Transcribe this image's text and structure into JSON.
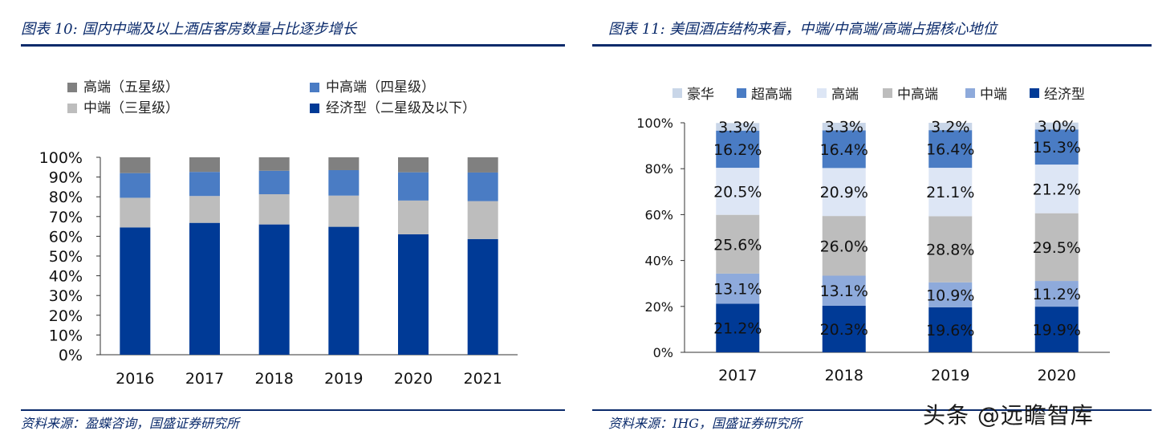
{
  "left": {
    "title": "图表 10:  国内中端及以上酒店客房数量占比逐步增长",
    "source": "资料来源：盈蝶咨询，国盛证券研究所"
  },
  "right": {
    "title": "图表 11:  美国酒店结构来看，中端/中高端/高端占据核心地位",
    "source": "资料来源：IHG，国盛证券研究所"
  },
  "watermark": "头条 @远瞻智库",
  "colors": {
    "rule": "#0a2a6b"
  },
  "chart_data": [
    {
      "type": "bar",
      "stacked": true,
      "title": "国内中端及以上酒店客房数量占比逐步增长",
      "categories": [
        "2016",
        "2017",
        "2018",
        "2019",
        "2020",
        "2021"
      ],
      "series": [
        {
          "name": "经济型（二星级及以下）",
          "color": "#003a96",
          "values": [
            64.5,
            66.8,
            66.0,
            64.8,
            61.0,
            58.6
          ]
        },
        {
          "name": "中端（三星级）",
          "color": "#bdbdbd",
          "values": [
            15.0,
            13.6,
            15.3,
            15.8,
            17.1,
            19.2
          ]
        },
        {
          "name": "中高端（四星级）",
          "color": "#4a7cc4",
          "values": [
            12.5,
            12.2,
            11.9,
            12.9,
            14.3,
            14.5
          ]
        },
        {
          "name": "高端（五星级）",
          "color": "#808080",
          "values": [
            8.0,
            7.4,
            6.8,
            6.5,
            7.6,
            7.7
          ]
        }
      ],
      "legend": [
        {
          "name": "高端（五星级）",
          "color": "#808080"
        },
        {
          "name": "中高端（四星级）",
          "color": "#4a7cc4"
        },
        {
          "name": "中端（三星级）",
          "color": "#bdbdbd"
        },
        {
          "name": "经济型（二星级及以下）",
          "color": "#003a96"
        }
      ],
      "y_ticks": [
        "0%",
        "10%",
        "20%",
        "30%",
        "40%",
        "50%",
        "60%",
        "70%",
        "80%",
        "90%",
        "100%"
      ],
      "ylim": [
        0,
        100
      ],
      "legend_position": "top-left"
    },
    {
      "type": "bar",
      "stacked": true,
      "title": "美国酒店结构来看，中端/中高端/高端占据核心地位",
      "categories": [
        "2017",
        "2018",
        "2019",
        "2020"
      ],
      "series": [
        {
          "name": "经济型",
          "color": "#003a96",
          "values": [
            21.2,
            20.3,
            19.6,
            19.9
          ],
          "labels": [
            "21.2%",
            "20.3%",
            "19.6%",
            "19.9%"
          ]
        },
        {
          "name": "中端",
          "color": "#8eaadb",
          "values": [
            13.1,
            13.1,
            10.9,
            11.2
          ],
          "labels": [
            "13.1%",
            "13.1%",
            "10.9%",
            "11.2%"
          ]
        },
        {
          "name": "中高端",
          "color": "#bdbdbd",
          "values": [
            25.6,
            26.0,
            28.8,
            29.5
          ],
          "labels": [
            "25.6%",
            "26.0%",
            "28.8%",
            "29.5%"
          ]
        },
        {
          "name": "高端",
          "color": "#dde6f5",
          "values": [
            20.5,
            20.9,
            21.1,
            21.2
          ],
          "labels": [
            "20.5%",
            "20.9%",
            "21.1%",
            "21.2%"
          ]
        },
        {
          "name": "超高端",
          "color": "#4a7cc4",
          "values": [
            16.2,
            16.4,
            16.4,
            15.3
          ],
          "labels": [
            "16.2%",
            "16.4%",
            "16.4%",
            "15.3%"
          ]
        },
        {
          "name": "豪华",
          "color": "#c9d6e8",
          "values": [
            3.3,
            3.3,
            3.2,
            3.0
          ],
          "labels": [
            "3.3%",
            "3.3%",
            "3.2%",
            "3.0%"
          ]
        }
      ],
      "legend": [
        {
          "name": "豪华",
          "color": "#c9d6e8"
        },
        {
          "name": "超高端",
          "color": "#4a7cc4"
        },
        {
          "name": "高端",
          "color": "#dde6f5"
        },
        {
          "name": "中高端",
          "color": "#bdbdbd"
        },
        {
          "name": "中端",
          "color": "#8eaadb"
        },
        {
          "name": "经济型",
          "color": "#003a96"
        }
      ],
      "y_ticks": [
        "0%",
        "20%",
        "40%",
        "60%",
        "80%",
        "100%"
      ],
      "ylim": [
        0,
        100
      ],
      "legend_position": "top"
    }
  ]
}
